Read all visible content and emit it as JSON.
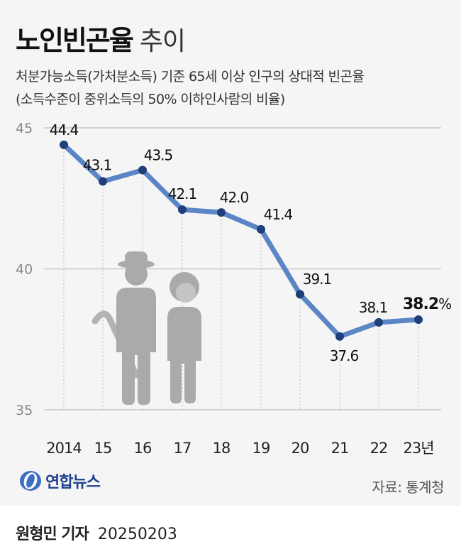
{
  "header": {
    "title_bold": "노인빈곤율",
    "title_light": "추이",
    "subtitle_line1": "처분가능소득(가처분소득) 기준 65세 이상 인구의 상대적 빈곤율",
    "subtitle_line2": "(소득수준이 중위소득의 50% 이하인사람의 비율)"
  },
  "chart_data": {
    "type": "line",
    "categories": [
      "2014",
      "15",
      "16",
      "17",
      "18",
      "19",
      "20",
      "21",
      "22",
      "23년"
    ],
    "values": [
      44.4,
      43.1,
      43.5,
      42.1,
      42.0,
      41.4,
      39.1,
      37.6,
      38.1,
      38.2
    ],
    "data_labels": [
      "44.4",
      "43.1",
      "43.5",
      "42.1",
      "42.0",
      "41.4",
      "39.1",
      "37.6",
      "38.1",
      "38.2"
    ],
    "last_label_unit": "%",
    "ylim": [
      35,
      45
    ],
    "yticks": [
      "35",
      "40",
      "45"
    ],
    "line_color": "#5b86c6",
    "marker_color": "#1f3f7a",
    "grid": "horizontal",
    "illustration": "elderly-couple-icon"
  },
  "footer": {
    "logo_text": "연합뉴스",
    "source": "자료: 통계청",
    "author": "원형민 기자",
    "date": "20250203"
  }
}
